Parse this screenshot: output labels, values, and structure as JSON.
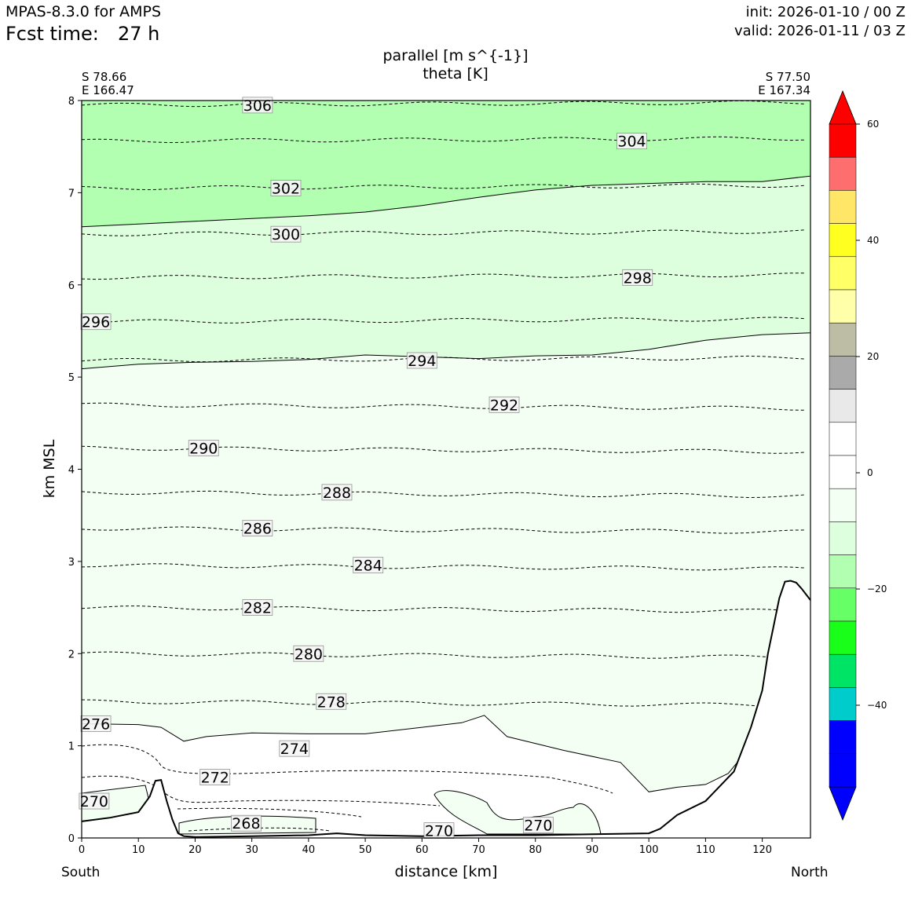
{
  "header": {
    "model": "MPAS-8.3.0 for AMPS",
    "fcst_label": "Fcst time:",
    "fcst_value": "27 h",
    "init": "init: 2026-01-10 / 00 Z",
    "valid": "valid: 2026-01-11 / 03 Z"
  },
  "chart_data": {
    "type": "cross-section",
    "title_line1": "parallel [m s^{-1}]",
    "title_line2": "theta [K]",
    "xlabel": "distance [km]",
    "ylabel": "km MSL",
    "xlim": [
      0,
      128.5
    ],
    "ylim": [
      0,
      8
    ],
    "x_ticks": [
      0,
      10,
      20,
      30,
      40,
      50,
      60,
      70,
      80,
      90,
      100,
      110,
      120
    ],
    "y_ticks": [
      0,
      1,
      2,
      3,
      4,
      5,
      6,
      7,
      8
    ],
    "endpoints": {
      "left": {
        "lat": "S 78.66",
        "lon": "E 166.47",
        "label": "South"
      },
      "right": {
        "lat": "S 77.50",
        "lon": "E 167.34",
        "label": "North"
      }
    },
    "fill_layers": [
      {
        "range": "-15 to -10",
        "color": "#b2ffb2",
        "top_km": 8,
        "bottom_line": [
          [
            0,
            6.63
          ],
          [
            10,
            6.66
          ],
          [
            20,
            6.69
          ],
          [
            30,
            6.72
          ],
          [
            40,
            6.75
          ],
          [
            50,
            6.79
          ],
          [
            60,
            6.86
          ],
          [
            70,
            6.95
          ],
          [
            80,
            7.03
          ],
          [
            90,
            7.08
          ],
          [
            100,
            7.1
          ],
          [
            110,
            7.12
          ],
          [
            120,
            7.12
          ],
          [
            128.5,
            7.18
          ]
        ]
      },
      {
        "range": "-10 to -5",
        "color": "#ddffdd",
        "top_km": 6.63,
        "bottom_line": [
          [
            0,
            5.09
          ],
          [
            10,
            5.14
          ],
          [
            20,
            5.16
          ],
          [
            30,
            5.17
          ],
          [
            40,
            5.19
          ],
          [
            50,
            5.24
          ],
          [
            60,
            5.22
          ],
          [
            70,
            5.2
          ],
          [
            80,
            5.23
          ],
          [
            90,
            5.24
          ],
          [
            100,
            5.3
          ],
          [
            110,
            5.4
          ],
          [
            120,
            5.46
          ],
          [
            128.5,
            5.48
          ]
        ]
      },
      {
        "range": "-5 to 0",
        "color": "#f2fff2",
        "top_km": 5.09,
        "bottom_line": [
          [
            0,
            1.24
          ],
          [
            10,
            1.23
          ],
          [
            14,
            1.2
          ],
          [
            18,
            1.05
          ],
          [
            22,
            1.1
          ],
          [
            30,
            1.14
          ],
          [
            40,
            1.13
          ],
          [
            50,
            1.13
          ],
          [
            60,
            1.2
          ],
          [
            67,
            1.25
          ],
          [
            71,
            1.33
          ],
          [
            75,
            1.1
          ],
          [
            85,
            0.95
          ],
          [
            95,
            0.82
          ],
          [
            100,
            0.5
          ],
          [
            105,
            0.55
          ],
          [
            110,
            0.58
          ],
          [
            114,
            0.7
          ],
          [
            118,
            1.0
          ],
          [
            120,
            1.5
          ],
          [
            122,
            2.2
          ],
          [
            124,
            2.78
          ],
          [
            128.5,
            2.58
          ]
        ]
      }
    ],
    "terrain": [
      [
        0,
        0.18
      ],
      [
        5,
        0.22
      ],
      [
        10,
        0.28
      ],
      [
        12,
        0.45
      ],
      [
        13,
        0.62
      ],
      [
        14,
        0.63
      ],
      [
        15,
        0.4
      ],
      [
        16,
        0.2
      ],
      [
        17,
        0.05
      ],
      [
        18,
        0.02
      ],
      [
        20,
        0.01
      ],
      [
        30,
        0.02
      ],
      [
        40,
        0.03
      ],
      [
        45,
        0.05
      ],
      [
        50,
        0.03
      ],
      [
        60,
        0.02
      ],
      [
        70,
        0.03
      ],
      [
        80,
        0.03
      ],
      [
        90,
        0.04
      ],
      [
        100,
        0.05
      ],
      [
        102,
        0.1
      ],
      [
        105,
        0.25
      ],
      [
        110,
        0.4
      ],
      [
        115,
        0.72
      ],
      [
        118,
        1.2
      ],
      [
        120,
        1.6
      ],
      [
        121,
        2.0
      ],
      [
        122,
        2.3
      ],
      [
        123,
        2.6
      ],
      [
        124,
        2.78
      ],
      [
        125,
        2.79
      ],
      [
        126,
        2.77
      ],
      [
        127,
        2.7
      ],
      [
        128.5,
        2.58
      ]
    ],
    "theta_contours": [
      {
        "value": "306",
        "level_km": 7.95,
        "label_x": 31
      },
      {
        "value": "304",
        "level_km": 7.56,
        "label_x": 97
      },
      {
        "value": "302",
        "level_km": 7.05,
        "label_x": 36
      },
      {
        "value": "300",
        "level_km": 6.55,
        "label_x": 36
      },
      {
        "value": "298",
        "level_km": 6.08,
        "label_x": 98
      },
      {
        "value": "296",
        "level_km": 5.6,
        "label_x": 2.5
      },
      {
        "value": "294",
        "level_km": 5.18,
        "label_x": 60
      },
      {
        "value": "292",
        "level_km": 4.7,
        "label_x": 74.5
      },
      {
        "value": "290",
        "level_km": 4.23,
        "label_x": 21.5
      },
      {
        "value": "288",
        "level_km": 3.75,
        "label_x": 45
      },
      {
        "value": "286",
        "level_km": 3.36,
        "label_x": 31
      },
      {
        "value": "284",
        "level_km": 2.96,
        "label_x": 50.5
      },
      {
        "value": "282",
        "level_km": 2.5,
        "label_x": 31
      },
      {
        "value": "280",
        "level_km": 2.0,
        "label_x": 40
      },
      {
        "value": "278",
        "level_km": 1.48,
        "label_x": 44
      },
      {
        "value": "276",
        "level_km": 1.24,
        "label_x": 2.5
      },
      {
        "value": "274",
        "level_km": 0.97,
        "label_x": 37.5
      },
      {
        "value": "272",
        "level_km": 0.66,
        "label_x": 23.5
      },
      {
        "value": "270",
        "level_km": 0.4,
        "label_x": 2.2
      },
      {
        "value": "268",
        "level_km": 0.16,
        "label_x": 29
      },
      {
        "value": "270",
        "level_km": 0.08,
        "label_x": 63
      },
      {
        "value": "270",
        "level_km": 0.14,
        "label_x": 80.5
      }
    ],
    "colorbar": {
      "ticks": [
        "60",
        "40",
        "20",
        "0",
        "−20",
        "−40"
      ],
      "colors": [
        "#0000ff",
        "#0000ff",
        "#0000ff",
        "#00cccc",
        "#00e466",
        "#1aff1a",
        "#66ff66",
        "#b2ffb2",
        "#ddffdd",
        "#f2fff2",
        "#ffffff",
        "#ffffff",
        "#e9e9e9",
        "#aaaaaa",
        "#bdbda6",
        "#ffffaa",
        "#ffff66",
        "#ffff20",
        "#ffe666",
        "#ff6e6e",
        "#ff0000",
        "#ff0000"
      ]
    }
  }
}
